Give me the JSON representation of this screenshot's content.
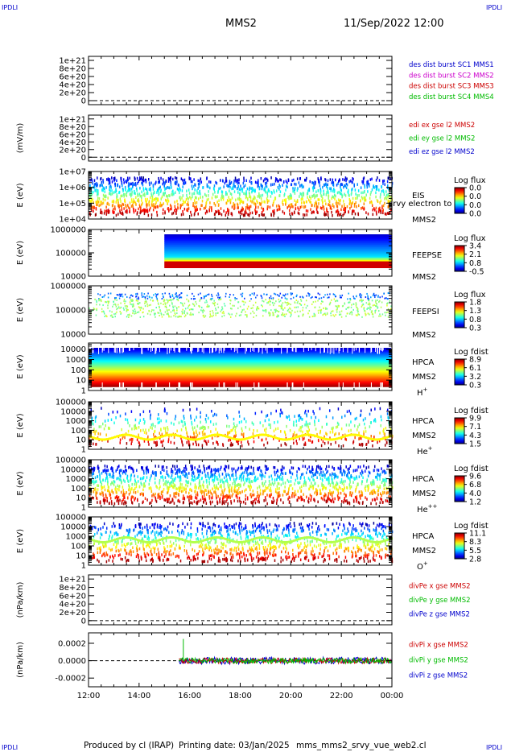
{
  "header": {
    "corner_tl": "IPDLI",
    "corner_tr": "IPDLI",
    "corner_bl": "IPDLI",
    "corner_br": "IPDLI",
    "spacecraft": "MMS2",
    "datetime": "11/Sep/2022 12:00"
  },
  "footer": {
    "producer": "Produced by cl (IRAP)",
    "printing_date": "Printing date: 03/Jan/2025",
    "filename": "mms_mms2_srvy_vue_web2.cl"
  },
  "colors": {
    "blue": "#0000cc",
    "magenta": "#cc00cc",
    "red": "#cc0000",
    "green": "#00bb00"
  },
  "chart_data": {
    "type": "stacked-panels",
    "x_ticks": [
      "12:00",
      "14:00",
      "16:00",
      "18:00",
      "20:00",
      "22:00",
      "00:00"
    ],
    "panels": [
      {
        "kind": "line",
        "ylabel": "",
        "yticks": [
          "1e+21",
          "8e+20",
          "6e+20",
          "4e+20",
          "2e+20",
          "0"
        ],
        "ytick_values": [
          1e+21,
          8e+20,
          6e+20,
          4e+20,
          2e+20,
          0
        ],
        "ylim": [
          -1e+20,
          1.1e+21
        ],
        "legend": [
          {
            "label": "des dist burst SC1 MMS1",
            "color": "#0000cc"
          },
          {
            "label": "des dist burst SC2 MMS2",
            "color": "#cc00cc"
          },
          {
            "label": "des dist burst SC3 MMS3",
            "color": "#cc0000"
          },
          {
            "label": "des dist burst SC4 MMS4",
            "color": "#00bb00"
          }
        ],
        "zero_line": true
      },
      {
        "kind": "line",
        "ylabel": "(mV/m)",
        "yticks": [
          "1e+21",
          "8e+20",
          "6e+20",
          "4e+20",
          "2e+20",
          "0"
        ],
        "ytick_values": [
          1e+21,
          8e+20,
          6e+20,
          4e+20,
          2e+20,
          0
        ],
        "ylim": [
          -1e+20,
          1.1e+21
        ],
        "legend": [
          {
            "label": "edi ex gse l2 MMS2",
            "color": "#cc0000"
          },
          {
            "label": "edi ey gse l2 MMS2",
            "color": "#00bb00"
          },
          {
            "label": "edi ez gse l2 MMS2",
            "color": "#0000cc"
          }
        ],
        "zero_line": true
      },
      {
        "kind": "spectrogram",
        "ylabel": "E (eV)",
        "yticks": [
          "1e+07",
          "1e+06",
          "1e+05",
          "1e+04"
        ],
        "ytick_values": [
          10000000.0,
          1000000.0,
          100000.0,
          10000.0
        ],
        "ylim": [
          10000.0,
          10000000.0
        ],
        "instrument": [
          "EIS",
          "MMS2"
        ],
        "overlay_note": "srvy electron to",
        "cbar_title": "Log flux",
        "cbar_ticks": [
          "0.0",
          "0.0",
          "0.0",
          "0.0"
        ],
        "pattern": "empty"
      },
      {
        "kind": "spectrogram",
        "ylabel": "E (eV)",
        "yticks": [
          "1000000",
          "100000",
          "10000"
        ],
        "ytick_values": [
          1000000.0,
          100000.0,
          10000.0
        ],
        "ylim": [
          10000.0,
          1000000.0
        ],
        "instrument": [
          "FEEPSE",
          "MMS2"
        ],
        "cbar_title": "Log flux",
        "cbar_ticks": [
          "3.4",
          "2.1",
          "0.8",
          "-0.5"
        ],
        "pattern": "feepse",
        "data_start": "15:00"
      },
      {
        "kind": "spectrogram",
        "ylabel": "E (eV)",
        "yticks": [
          "1000000",
          "100000",
          "10000"
        ],
        "ytick_values": [
          1000000.0,
          100000.0,
          10000.0
        ],
        "ylim": [
          10000.0,
          1000000.0
        ],
        "instrument": [
          "FEEPSI",
          "MMS2"
        ],
        "cbar_title": "Log flux",
        "cbar_ticks": [
          "1.8",
          "1.3",
          "0.8",
          "0.3"
        ],
        "pattern": "feepsi"
      },
      {
        "kind": "spectrogram",
        "ylabel": "E (eV)",
        "yticks": [
          "10000",
          "1000",
          "100",
          "10",
          "1"
        ],
        "ytick_values": [
          10000.0,
          1000.0,
          100.0,
          10.0,
          1
        ],
        "ylim": [
          1,
          40000.0
        ],
        "instrument": [
          "HPCA",
          "MMS2"
        ],
        "species": "H",
        "species_sup": "+",
        "cbar_title": "Log fdist",
        "cbar_ticks": [
          "8.9",
          "6.1",
          "3.2",
          "0.3"
        ],
        "pattern": "hplus"
      },
      {
        "kind": "spectrogram",
        "ylabel": "E (eV)",
        "yticks": [
          "100000",
          "10000",
          "1000",
          "100",
          "10",
          "1"
        ],
        "ytick_values": [
          100000.0,
          10000.0,
          1000.0,
          100.0,
          10.0,
          1
        ],
        "ylim": [
          1,
          100000.0
        ],
        "instrument": [
          "HPCA",
          "MMS2"
        ],
        "species": "He",
        "species_sup": "+",
        "cbar_title": "Log fdist",
        "cbar_ticks": [
          "9.9",
          "7.1",
          "4.3",
          "1.5"
        ],
        "pattern": "heplus"
      },
      {
        "kind": "spectrogram",
        "ylabel": "E (eV)",
        "yticks": [
          "100000",
          "10000",
          "1000",
          "100",
          "10",
          "1"
        ],
        "ytick_values": [
          100000.0,
          10000.0,
          1000.0,
          100.0,
          10.0,
          1
        ],
        "ylim": [
          1,
          100000.0
        ],
        "instrument": [
          "HPCA",
          "MMS2"
        ],
        "species": "He",
        "species_sup": "++",
        "cbar_title": "Log fdist",
        "cbar_ticks": [
          "9.6",
          "6.8",
          "4.0",
          "1.2"
        ],
        "pattern": "heplusplus"
      },
      {
        "kind": "spectrogram",
        "ylabel": "E (eV)",
        "yticks": [
          "100000",
          "10000",
          "1000",
          "100",
          "10",
          "1"
        ],
        "ytick_values": [
          100000.0,
          10000.0,
          1000.0,
          100.0,
          10.0,
          1
        ],
        "ylim": [
          1,
          100000.0
        ],
        "instrument": [
          "HPCA",
          "MMS2"
        ],
        "species": "O",
        "species_sup": "+",
        "cbar_title": "Log fdist",
        "cbar_ticks": [
          "11.1",
          "8.3",
          "5.5",
          "2.8"
        ],
        "pattern": "oplus"
      },
      {
        "kind": "line",
        "ylabel": "(nPa/km)",
        "yticks": [
          "1e+21",
          "8e+20",
          "6e+20",
          "4e+20",
          "2e+20",
          "0"
        ],
        "ytick_values": [
          1e+21,
          8e+20,
          6e+20,
          4e+20,
          2e+20,
          0
        ],
        "ylim": [
          -1e+20,
          1.1e+21
        ],
        "legend": [
          {
            "label": "divPe x gse MMS2",
            "color": "#cc0000"
          },
          {
            "label": "divPe y gse MMS2",
            "color": "#00bb00"
          },
          {
            "label": "divPe z gse MMS2",
            "color": "#0000cc"
          }
        ],
        "zero_line": true
      },
      {
        "kind": "line",
        "ylabel": "(nPa/km)",
        "yticks": [
          "0.0002",
          "0.0000",
          "-0.0002"
        ],
        "ytick_values": [
          0.0002,
          0,
          -0.0002
        ],
        "ylim": [
          -0.0003,
          0.00032
        ],
        "legend": [
          {
            "label": "divPi x gse MMS2",
            "color": "#cc0000"
          },
          {
            "label": "divPi y gse MMS2",
            "color": "#00bb00"
          },
          {
            "label": "divPi z gse MMS2",
            "color": "#0000cc"
          }
        ],
        "zero_line": true,
        "noise_start": "15:35",
        "noise_amplitude": 4e-05,
        "spike_time": "15:45",
        "spike_value": 0.00025
      }
    ]
  }
}
